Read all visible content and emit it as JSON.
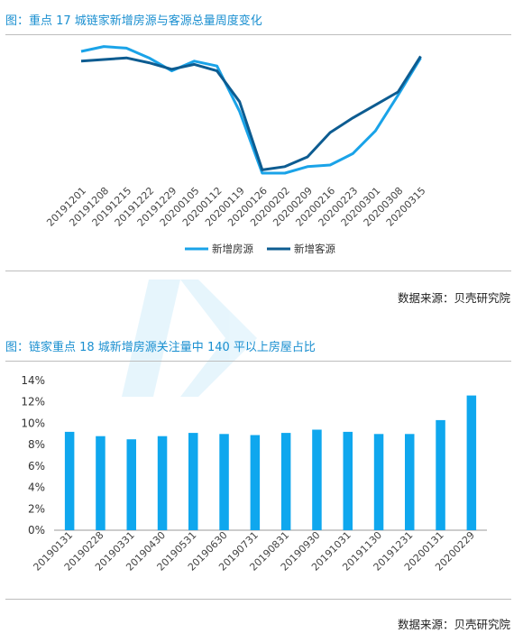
{
  "chart1": {
    "title": "图：重点 17 城链家新增房源与客源总量周度变化",
    "source": "数据来源：贝壳研究院"
  },
  "chart2": {
    "title": "图：链家重点 18 城新增房源关注量中 140 平以上房屋占比",
    "source": "数据来源：贝壳研究院"
  },
  "colors": {
    "series_light": "#1aa3e8",
    "series_dark": "#0d5c91",
    "bar": "#0fa7ee",
    "title": "#1a8fd0"
  },
  "chart_data": [
    {
      "type": "line",
      "title": "图：重点 17 城链家新增房源与客源总量周度变化",
      "x": [
        "20191201",
        "20191208",
        "20191215",
        "20191222",
        "20191229",
        "20200105",
        "20200112",
        "20200119",
        "20200126",
        "20200202",
        "20200209",
        "20200216",
        "20200223",
        "20200301",
        "20200308",
        "20200315"
      ],
      "series": [
        {
          "name": "新增房源",
          "color": "#1aa3e8",
          "values": [
            85,
            88,
            87,
            81,
            73,
            79,
            76,
            48,
            10,
            10,
            14,
            15,
            22,
            36,
            58,
            81
          ]
        },
        {
          "name": "新增客源",
          "color": "#0d5c91",
          "values": [
            79,
            80,
            81,
            78,
            74,
            77,
            73,
            54,
            12,
            14,
            20,
            35,
            44,
            52,
            60,
            82
          ]
        }
      ],
      "ylim": [
        0,
        100
      ],
      "grid": false,
      "legend": "bottom"
    },
    {
      "type": "bar",
      "title": "图：链家重点 18 城新增房源关注量中 140 平以上房屋占比",
      "categories": [
        "20190131",
        "20190228",
        "20190331",
        "20190430",
        "20190531",
        "20190630",
        "20190731",
        "20190831",
        "20190930",
        "20191031",
        "20191130",
        "20191231",
        "20200131",
        "20200229"
      ],
      "values": [
        9.2,
        8.8,
        8.5,
        8.8,
        9.1,
        9.0,
        8.9,
        9.1,
        9.4,
        9.2,
        9.0,
        9.0,
        10.3,
        12.6
      ],
      "yticks": [
        "0%",
        "2%",
        "4%",
        "6%",
        "8%",
        "10%",
        "12%",
        "14%"
      ],
      "ylim": [
        0,
        14
      ],
      "grid": false
    }
  ]
}
